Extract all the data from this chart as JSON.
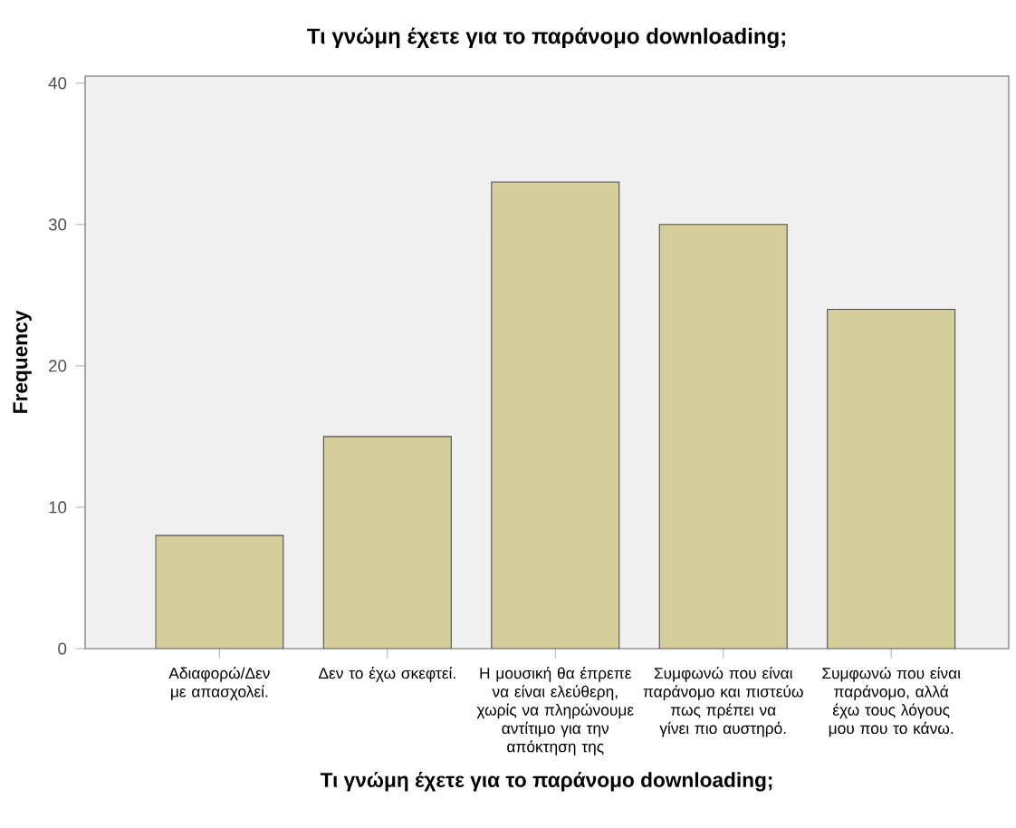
{
  "chart_data": {
    "type": "bar",
    "title": "Τι γνώμη έχετε για το παράνομο downloading;",
    "xlabel": "Τι γνώμη έχετε για το παράνομο downloading;",
    "ylabel": "Frequency",
    "categories": [
      "Αδιαφορώ/Δεν με απασχολεί.",
      "Δεν το έχω σκεφτεί.",
      "Η μουσική θα έπρεπε να είναι ελεύθερη, χωρίς να πληρώνουμε αντίτιμο για την απόκτηση της",
      "Συμφωνώ που είναι παράνομο και πιστεύω πως πρέπει να γίνει πιο αυστηρό.",
      "Συμφωνώ που είναι παράνομο, αλλά έχω τους λόγους μου που το κάνω."
    ],
    "values": [
      8,
      15,
      33,
      30,
      24
    ],
    "color": "#d3ce9a",
    "ylim": [
      0,
      40.5
    ],
    "yticks": [
      0,
      10,
      20,
      30,
      40
    ],
    "grid": false
  }
}
